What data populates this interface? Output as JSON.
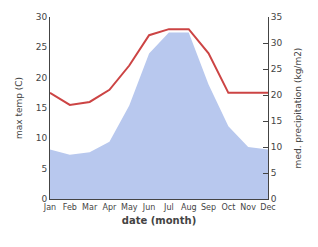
{
  "chart_data": {
    "type": "line",
    "categories": [
      "Jan",
      "Feb",
      "Mar",
      "Apr",
      "May",
      "Jun",
      "Jul",
      "Aug",
      "Sep",
      "Oct",
      "Nov",
      "Dec"
    ],
    "series": [
      {
        "type": "area",
        "axis": "y2",
        "color": "#b8c8ee",
        "values": [
          9.5,
          8.5,
          9.0,
          11.0,
          18.0,
          28.0,
          32.0,
          32.0,
          22.0,
          14.0,
          10.0,
          9.5
        ]
      },
      {
        "type": "line",
        "color": "#cc4444",
        "values": [
          17.5,
          15.5,
          16.0,
          18.0,
          22.0,
          27.0,
          28.0,
          28.0,
          24.0,
          17.5,
          17.5,
          17.5
        ]
      }
    ],
    "xlabel": "date (month)",
    "ylabel": "max temp (C)",
    "y2label": "med. precipitation (kg/m2)",
    "ylim": [
      0,
      30
    ],
    "yticks": [
      0,
      5,
      10,
      15,
      20,
      25,
      30
    ],
    "y2lim": [
      0,
      35
    ],
    "y2ticks": [
      0,
      5,
      10,
      15,
      20,
      25,
      30,
      35
    ],
    "grid": false
  }
}
